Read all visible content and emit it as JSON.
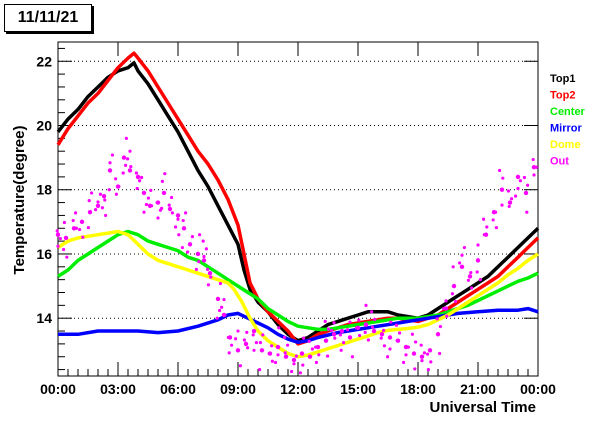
{
  "date_label": "11/11/21",
  "chart_data": {
    "type": "scatter",
    "xlabel": "Universal Time",
    "ylabel": "Temperature(degree)",
    "xlim": [
      0,
      24
    ],
    "ylim": [
      12.2,
      22.6
    ],
    "x_ticks": [
      "00:00",
      "03:00",
      "06:00",
      "09:00",
      "12:00",
      "15:00",
      "18:00",
      "21:00",
      "00:00"
    ],
    "y_ticks": [
      14,
      16,
      18,
      20,
      22
    ],
    "grid": "horizontal dotted",
    "legend_placement": "right",
    "series": [
      {
        "name": "Top1",
        "color": "#000000",
        "x": [
          0,
          0.5,
          1,
          1.5,
          2,
          2.5,
          3,
          3.5,
          3.8,
          4,
          4.5,
          5,
          5.5,
          6,
          6.5,
          7,
          7.5,
          8,
          8.5,
          9,
          9.3,
          9.6,
          10,
          10.5,
          11,
          11.5,
          12,
          12.5,
          13,
          13.5,
          14,
          14.5,
          15,
          15.5,
          16,
          16.5,
          17,
          17.5,
          18,
          18.5,
          19,
          19.5,
          20,
          20.5,
          21,
          21.5,
          22,
          22.5,
          23,
          23.5,
          24
        ],
        "y": [
          19.8,
          20.2,
          20.5,
          20.9,
          21.2,
          21.5,
          21.7,
          21.8,
          21.95,
          21.7,
          21.3,
          20.8,
          20.3,
          19.8,
          19.2,
          18.6,
          18.1,
          17.5,
          16.9,
          16.3,
          15.5,
          14.9,
          14.5,
          14.2,
          13.8,
          13.5,
          13.3,
          13.4,
          13.6,
          13.8,
          13.9,
          14.0,
          14.1,
          14.2,
          14.2,
          14.2,
          14.1,
          14.05,
          14.0,
          14.1,
          14.3,
          14.5,
          14.7,
          14.9,
          15.1,
          15.3,
          15.6,
          15.9,
          16.2,
          16.5,
          16.8
        ]
      },
      {
        "name": "Top2",
        "color": "#ff0000",
        "x": [
          0,
          0.5,
          1,
          1.5,
          2,
          2.5,
          3,
          3.5,
          3.8,
          4,
          4.5,
          5,
          5.5,
          6,
          6.5,
          7,
          7.5,
          8,
          8.5,
          9,
          9.3,
          9.6,
          10,
          10.5,
          11,
          11.5,
          12,
          12.5,
          13,
          13.5,
          14,
          14.5,
          15,
          15.5,
          16,
          16.5,
          17,
          17.5,
          18,
          18.5,
          19,
          19.5,
          20,
          20.5,
          21,
          21.5,
          22,
          22.5,
          23,
          23.5,
          24
        ],
        "y": [
          19.4,
          19.9,
          20.3,
          20.7,
          21.0,
          21.4,
          21.8,
          22.1,
          22.25,
          22.1,
          21.7,
          21.2,
          20.7,
          20.2,
          19.7,
          19.2,
          18.8,
          18.3,
          17.7,
          16.9,
          16.0,
          15.1,
          14.6,
          14.2,
          13.9,
          13.6,
          13.2,
          13.3,
          13.5,
          13.6,
          13.7,
          13.8,
          13.85,
          13.9,
          13.95,
          14.0,
          14.0,
          13.95,
          13.9,
          14.0,
          14.1,
          14.3,
          14.5,
          14.7,
          14.9,
          15.1,
          15.3,
          15.6,
          15.9,
          16.2,
          16.5
        ]
      },
      {
        "name": "Center",
        "color": "#00ee00",
        "x": [
          0,
          0.5,
          1,
          1.5,
          2,
          2.5,
          3,
          3.5,
          4,
          4.5,
          5,
          5.5,
          6,
          6.5,
          7,
          7.5,
          8,
          8.5,
          9,
          9.5,
          10,
          10.5,
          11,
          11.5,
          12,
          12.5,
          13,
          13.5,
          14,
          14.5,
          15,
          15.5,
          16,
          16.5,
          17,
          17.5,
          18,
          18.5,
          19,
          19.5,
          20,
          20.5,
          21,
          21.5,
          22,
          22.5,
          23,
          23.5,
          24
        ],
        "y": [
          15.3,
          15.5,
          15.8,
          16.0,
          16.2,
          16.4,
          16.6,
          16.7,
          16.6,
          16.4,
          16.3,
          16.2,
          16.1,
          15.9,
          15.8,
          15.6,
          15.4,
          15.2,
          15.0,
          14.8,
          14.6,
          14.3,
          14.1,
          13.9,
          13.75,
          13.7,
          13.65,
          13.65,
          13.7,
          13.75,
          13.8,
          13.85,
          13.9,
          13.95,
          14.0,
          14.0,
          14.0,
          14.05,
          14.1,
          14.2,
          14.3,
          14.4,
          14.55,
          14.7,
          14.85,
          15.0,
          15.15,
          15.25,
          15.4
        ]
      },
      {
        "name": "Mirror",
        "color": "#0000ff",
        "x": [
          0,
          1,
          2,
          3,
          4,
          5,
          6,
          7,
          8,
          8.5,
          9,
          9.5,
          10,
          10.5,
          11,
          11.5,
          12,
          12.5,
          13,
          14,
          15,
          16,
          17,
          18,
          19,
          20,
          21,
          22,
          23,
          23.5,
          24
        ],
        "y": [
          13.5,
          13.5,
          13.6,
          13.6,
          13.6,
          13.55,
          13.6,
          13.75,
          13.95,
          14.1,
          14.15,
          14.0,
          13.85,
          13.7,
          13.5,
          13.35,
          13.25,
          13.3,
          13.4,
          13.55,
          13.65,
          13.75,
          13.85,
          13.95,
          14.05,
          14.15,
          14.2,
          14.25,
          14.25,
          14.3,
          14.2
        ]
      },
      {
        "name": "Dome",
        "color": "#ffff00",
        "x": [
          0,
          0.5,
          1,
          1.5,
          2,
          2.5,
          3,
          3.5,
          4,
          4.5,
          5,
          5.5,
          6,
          6.5,
          7,
          7.5,
          8,
          8.5,
          8.8,
          9.2,
          9.6,
          10,
          10.5,
          11,
          11.5,
          12,
          12.5,
          13,
          13.5,
          14,
          14.5,
          15,
          15.5,
          16,
          16.5,
          17,
          17.5,
          18,
          18.5,
          19,
          19.5,
          20,
          20.5,
          21,
          21.5,
          22,
          22.5,
          23,
          23.5,
          24
        ],
        "y": [
          16.2,
          16.4,
          16.5,
          16.55,
          16.6,
          16.65,
          16.7,
          16.6,
          16.3,
          16.0,
          15.8,
          15.7,
          15.6,
          15.5,
          15.4,
          15.3,
          15.2,
          15.1,
          14.9,
          14.5,
          14.0,
          13.6,
          13.3,
          13.1,
          12.9,
          12.8,
          12.85,
          12.95,
          13.05,
          13.15,
          13.25,
          13.35,
          13.45,
          13.55,
          13.62,
          13.65,
          13.68,
          13.72,
          13.8,
          13.95,
          14.1,
          14.3,
          14.5,
          14.7,
          14.9,
          15.1,
          15.35,
          15.55,
          15.8,
          16.0
        ]
      },
      {
        "name": "Out",
        "color": "#ff00ff",
        "x": [
          0,
          0.4,
          0.8,
          1.2,
          1.6,
          2,
          2.3,
          2.6,
          3,
          3.3,
          3.6,
          4,
          4.3,
          4.6,
          5,
          5.3,
          5.6,
          6,
          6.3,
          6.6,
          7,
          7.3,
          7.6,
          8,
          8.3,
          8.6,
          9,
          9.4,
          9.8,
          10.2,
          10.6,
          11,
          11.4,
          11.8,
          12.2,
          12.6,
          13,
          13.4,
          13.8,
          14.2,
          14.6,
          15,
          15.4,
          15.8,
          16.2,
          16.6,
          17,
          17.4,
          17.8,
          18.2,
          18.6,
          19,
          19.4,
          19.8,
          20.2,
          20.6,
          21,
          21.4,
          21.8,
          22.2,
          22.6,
          23,
          23.4,
          23.8
        ],
        "y": [
          16.6,
          16.5,
          16.8,
          17.0,
          17.3,
          17.5,
          17.8,
          18.6,
          18.1,
          19.0,
          18.6,
          18.4,
          17.9,
          17.5,
          17.6,
          17.9,
          17.4,
          17.2,
          16.8,
          16.3,
          16.0,
          15.8,
          15.4,
          14.6,
          14.1,
          13.4,
          13.0,
          13.2,
          13.6,
          13.0,
          12.9,
          13.1,
          12.8,
          12.7,
          12.9,
          12.8,
          13.1,
          13.3,
          13.5,
          13.6,
          13.4,
          13.7,
          13.8,
          13.6,
          13.5,
          13.4,
          13.3,
          13.1,
          12.9,
          12.8,
          13.0,
          13.5,
          14.3,
          15.0,
          15.6,
          15.3,
          15.8,
          16.6,
          17.3,
          18.0,
          17.6,
          18.4,
          17.9,
          18.7
        ]
      }
    ]
  }
}
